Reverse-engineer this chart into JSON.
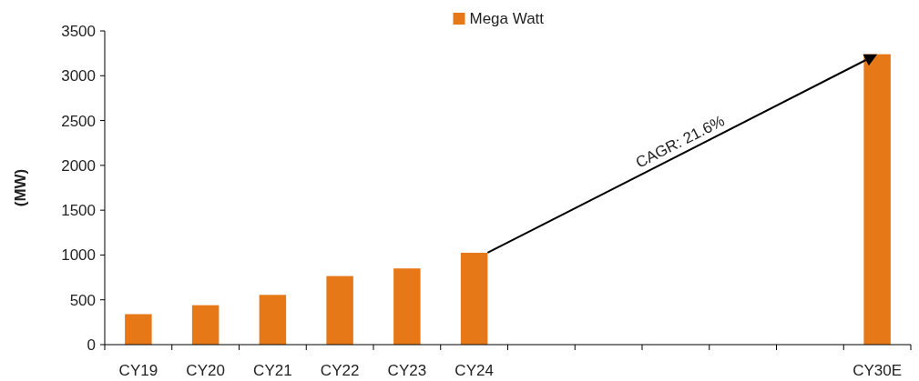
{
  "chart_data": {
    "type": "bar",
    "ylabel": "(MW)",
    "categories": [
      "CY19",
      "CY20",
      "CY21",
      "CY22",
      "CY23",
      "CY24",
      null,
      null,
      null,
      null,
      null,
      "CY30E"
    ],
    "series": [
      {
        "name": "Mega Watt",
        "color": "#e67817",
        "values": [
          340,
          440,
          555,
          765,
          850,
          1025,
          null,
          null,
          null,
          null,
          null,
          3240
        ]
      }
    ],
    "ylim": [
      0,
      3500
    ],
    "yticks": [
      0,
      500,
      1000,
      1500,
      2000,
      2500,
      3000,
      3500
    ],
    "grid": false,
    "legend": "top",
    "annotations": [
      "CAGR: 21.6%"
    ]
  }
}
